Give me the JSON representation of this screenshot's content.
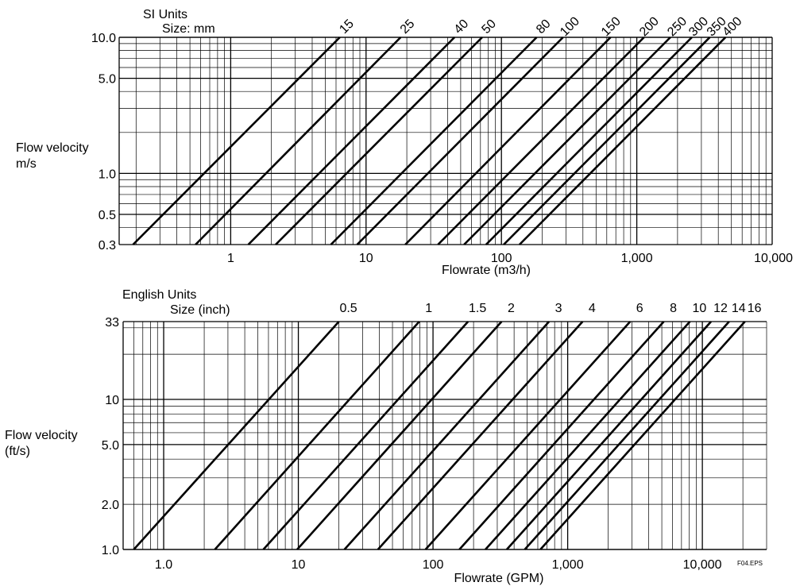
{
  "chart_data": [
    {
      "type": "line",
      "scale": "log-log",
      "units_label": "SI Units",
      "size_label": "Size: mm",
      "xlabel": "Flowrate (m3/h)",
      "ylabel_line1": "Flow velocity",
      "ylabel_line2": "m/s",
      "xlim": [
        0.15,
        10000
      ],
      "ylim": [
        0.3,
        10
      ],
      "x_tick_labels": [
        {
          "value": 1,
          "text": "1"
        },
        {
          "value": 10,
          "text": "10"
        },
        {
          "value": 100,
          "text": "100"
        },
        {
          "value": 1000,
          "text": "1,000"
        },
        {
          "value": 10000,
          "text": "10,000"
        }
      ],
      "y_tick_labels": [
        {
          "value": 10,
          "text": "10.0"
        },
        {
          "value": 5,
          "text": "5.0"
        },
        {
          "value": 1,
          "text": "1.0"
        },
        {
          "value": 0.5,
          "text": "0.5"
        },
        {
          "value": 0.3,
          "text": "0.3"
        }
      ],
      "grid": true,
      "series": [
        {
          "name": "15",
          "x": [
            0.19,
            6.4
          ],
          "y": [
            0.3,
            10
          ]
        },
        {
          "name": "25",
          "x": [
            0.55,
            18
          ],
          "y": [
            0.3,
            10
          ]
        },
        {
          "name": "40",
          "x": [
            1.35,
            45
          ],
          "y": [
            0.3,
            10
          ]
        },
        {
          "name": "50",
          "x": [
            2.15,
            72
          ],
          "y": [
            0.3,
            10
          ]
        },
        {
          "name": "80",
          "x": [
            5.5,
            182
          ],
          "y": [
            0.3,
            10
          ]
        },
        {
          "name": "100",
          "x": [
            8.6,
            285
          ],
          "y": [
            0.3,
            10
          ]
        },
        {
          "name": "150",
          "x": [
            19.5,
            640
          ],
          "y": [
            0.3,
            10
          ]
        },
        {
          "name": "200",
          "x": [
            34,
            1130
          ],
          "y": [
            0.3,
            10
          ]
        },
        {
          "name": "250",
          "x": [
            53,
            1770
          ],
          "y": [
            0.3,
            10
          ]
        },
        {
          "name": "300",
          "x": [
            77,
            2550
          ],
          "y": [
            0.3,
            10
          ]
        },
        {
          "name": "350",
          "x": [
            104,
            3460
          ],
          "y": [
            0.3,
            10
          ]
        },
        {
          "name": "400",
          "x": [
            136,
            4520
          ],
          "y": [
            0.3,
            10
          ]
        }
      ]
    },
    {
      "type": "line",
      "scale": "log-log",
      "units_label": "English Units",
      "size_label": "Size  (inch)",
      "xlabel": "Flowrate (GPM)",
      "ylabel_line1": "Flow velocity",
      "ylabel_line2": "(ft/s)",
      "xlim": [
        0.5,
        30000
      ],
      "ylim": [
        1,
        33
      ],
      "x_tick_labels": [
        {
          "value": 1,
          "text": "1.0"
        },
        {
          "value": 10,
          "text": "10"
        },
        {
          "value": 100,
          "text": "100"
        },
        {
          "value": 1000,
          "text": "1,000"
        },
        {
          "value": 10000,
          "text": "10,000"
        }
      ],
      "y_tick_labels": [
        {
          "value": 33,
          "text": "33"
        },
        {
          "value": 10,
          "text": "10"
        },
        {
          "value": 5,
          "text": "5.0"
        },
        {
          "value": 2,
          "text": "2.0"
        },
        {
          "value": 1,
          "text": "1.0"
        }
      ],
      "grid": true,
      "series": [
        {
          "name": "0.5",
          "x": [
            0.6,
            20
          ],
          "y": [
            1,
            33
          ]
        },
        {
          "name": "1",
          "x": [
            2.4,
            79
          ],
          "y": [
            1,
            33
          ]
        },
        {
          "name": "1.5",
          "x": [
            5.5,
            182
          ],
          "y": [
            1,
            33
          ]
        },
        {
          "name": "2",
          "x": [
            9.8,
            323
          ],
          "y": [
            1,
            33
          ]
        },
        {
          "name": "3",
          "x": [
            22,
            727
          ],
          "y": [
            1,
            33
          ]
        },
        {
          "name": "4",
          "x": [
            39,
            1290
          ],
          "y": [
            1,
            33
          ]
        },
        {
          "name": "6",
          "x": [
            88,
            2910
          ],
          "y": [
            1,
            33
          ]
        },
        {
          "name": "8",
          "x": [
            157,
            5170
          ],
          "y": [
            1,
            33
          ]
        },
        {
          "name": "10",
          "x": [
            245,
            8080
          ],
          "y": [
            1,
            33
          ]
        },
        {
          "name": "12",
          "x": [
            353,
            11600
          ],
          "y": [
            1,
            33
          ]
        },
        {
          "name": "14",
          "x": [
            480,
            15800
          ],
          "y": [
            1,
            33
          ]
        },
        {
          "name": "16",
          "x": [
            627,
            20700
          ],
          "y": [
            1,
            33
          ]
        }
      ]
    }
  ],
  "figure_id": "F04.EPS"
}
